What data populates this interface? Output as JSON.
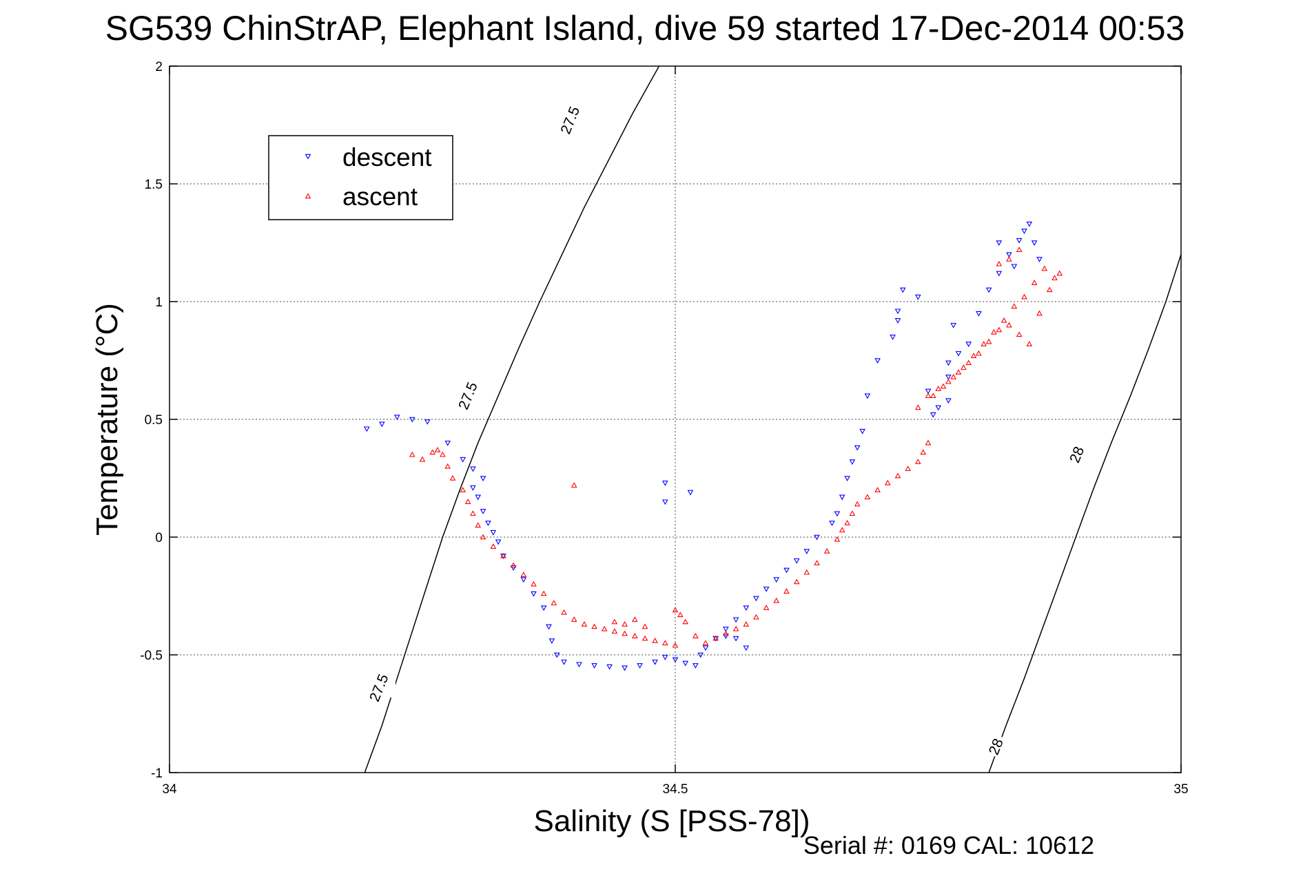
{
  "chart_data": {
    "type": "scatter",
    "title": "SG539 ChinStrAP, Elephant Island, dive 59 started 17-Dec-2014 00:53",
    "xlabel": "Salinity (S [PSS-78])",
    "ylabel": "Temperature (°C)",
    "footer": "Serial #: 0169 CAL: 10612",
    "xlim": [
      34,
      35
    ],
    "ylim": [
      -1,
      2
    ],
    "x_ticks": [
      "34",
      "34.5",
      "35"
    ],
    "y_ticks": [
      "-1",
      "-0.5",
      "0",
      "0.5",
      "1",
      "1.5",
      "2"
    ],
    "x_tick_values": [
      34,
      34.5,
      35
    ],
    "y_tick_values": [
      -1,
      -0.5,
      0,
      0.5,
      1,
      1.5,
      2
    ],
    "grid": true,
    "legend": {
      "position": "top-left"
    },
    "series": [
      {
        "name": "descent",
        "color": "#0000ff",
        "marker": "triangle-down",
        "points": [
          [
            34.195,
            0.46
          ],
          [
            34.21,
            0.48
          ],
          [
            34.225,
            0.51
          ],
          [
            34.24,
            0.5
          ],
          [
            34.255,
            0.49
          ],
          [
            34.275,
            0.4
          ],
          [
            34.29,
            0.33
          ],
          [
            34.3,
            0.29
          ],
          [
            34.31,
            0.25
          ],
          [
            34.3,
            0.21
          ],
          [
            34.305,
            0.17
          ],
          [
            34.31,
            0.11
          ],
          [
            34.315,
            0.06
          ],
          [
            34.32,
            0.02
          ],
          [
            34.325,
            -0.02
          ],
          [
            34.33,
            -0.08
          ],
          [
            34.34,
            -0.13
          ],
          [
            34.35,
            -0.18
          ],
          [
            34.36,
            -0.24
          ],
          [
            34.37,
            -0.3
          ],
          [
            34.375,
            -0.38
          ],
          [
            34.378,
            -0.44
          ],
          [
            34.383,
            -0.5
          ],
          [
            34.39,
            -0.53
          ],
          [
            34.405,
            -0.54
          ],
          [
            34.42,
            -0.545
          ],
          [
            34.435,
            -0.55
          ],
          [
            34.45,
            -0.555
          ],
          [
            34.465,
            -0.545
          ],
          [
            34.48,
            -0.53
          ],
          [
            34.49,
            -0.51
          ],
          [
            34.5,
            -0.52
          ],
          [
            34.51,
            -0.535
          ],
          [
            34.52,
            -0.545
          ],
          [
            34.525,
            -0.5
          ],
          [
            34.53,
            -0.47
          ],
          [
            34.54,
            -0.43
          ],
          [
            34.55,
            -0.42
          ],
          [
            34.56,
            -0.43
          ],
          [
            34.57,
            -0.47
          ],
          [
            34.55,
            -0.39
          ],
          [
            34.56,
            -0.35
          ],
          [
            34.57,
            -0.3
          ],
          [
            34.58,
            -0.26
          ],
          [
            34.59,
            -0.22
          ],
          [
            34.6,
            -0.18
          ],
          [
            34.61,
            -0.14
          ],
          [
            34.62,
            -0.1
          ],
          [
            34.63,
            -0.06
          ],
          [
            34.64,
            0.0
          ],
          [
            34.655,
            0.06
          ],
          [
            34.66,
            0.1
          ],
          [
            34.665,
            0.17
          ],
          [
            34.67,
            0.25
          ],
          [
            34.675,
            0.32
          ],
          [
            34.68,
            0.38
          ],
          [
            34.685,
            0.45
          ],
          [
            34.69,
            0.6
          ],
          [
            34.7,
            0.75
          ],
          [
            34.715,
            0.85
          ],
          [
            34.72,
            0.96
          ],
          [
            34.725,
            1.05
          ],
          [
            34.74,
            1.02
          ],
          [
            34.72,
            0.92
          ],
          [
            34.75,
            0.62
          ],
          [
            34.76,
            0.55
          ],
          [
            34.755,
            0.52
          ],
          [
            34.77,
            0.68
          ],
          [
            34.77,
            0.74
          ],
          [
            34.77,
            0.58
          ],
          [
            34.78,
            0.78
          ],
          [
            34.775,
            0.9
          ],
          [
            34.79,
            0.82
          ],
          [
            34.8,
            0.95
          ],
          [
            34.81,
            1.05
          ],
          [
            34.82,
            1.12
          ],
          [
            34.83,
            1.2
          ],
          [
            34.84,
            1.26
          ],
          [
            34.845,
            1.3
          ],
          [
            34.85,
            1.33
          ],
          [
            34.855,
            1.25
          ],
          [
            34.86,
            1.18
          ],
          [
            34.835,
            1.15
          ],
          [
            34.82,
            1.25
          ],
          [
            34.49,
            0.23
          ],
          [
            34.49,
            0.15
          ],
          [
            34.515,
            0.19
          ]
        ]
      },
      {
        "name": "ascent",
        "color": "#ff0000",
        "marker": "triangle-up",
        "points": [
          [
            34.24,
            0.35
          ],
          [
            34.25,
            0.33
          ],
          [
            34.26,
            0.36
          ],
          [
            34.265,
            0.37
          ],
          [
            34.27,
            0.35
          ],
          [
            34.275,
            0.3
          ],
          [
            34.28,
            0.25
          ],
          [
            34.29,
            0.2
          ],
          [
            34.295,
            0.15
          ],
          [
            34.3,
            0.1
          ],
          [
            34.305,
            0.05
          ],
          [
            34.31,
            0.0
          ],
          [
            34.32,
            -0.04
          ],
          [
            34.33,
            -0.08
          ],
          [
            34.34,
            -0.12
          ],
          [
            34.35,
            -0.16
          ],
          [
            34.36,
            -0.2
          ],
          [
            34.37,
            -0.24
          ],
          [
            34.38,
            -0.28
          ],
          [
            34.39,
            -0.32
          ],
          [
            34.4,
            -0.35
          ],
          [
            34.41,
            -0.37
          ],
          [
            34.42,
            -0.38
          ],
          [
            34.43,
            -0.39
          ],
          [
            34.44,
            -0.4
          ],
          [
            34.45,
            -0.41
          ],
          [
            34.46,
            -0.42
          ],
          [
            34.47,
            -0.43
          ],
          [
            34.48,
            -0.44
          ],
          [
            34.49,
            -0.45
          ],
          [
            34.5,
            -0.46
          ],
          [
            34.44,
            -0.36
          ],
          [
            34.45,
            -0.37
          ],
          [
            34.46,
            -0.35
          ],
          [
            34.47,
            -0.38
          ],
          [
            34.5,
            -0.31
          ],
          [
            34.505,
            -0.33
          ],
          [
            34.51,
            -0.36
          ],
          [
            34.52,
            -0.42
          ],
          [
            34.53,
            -0.45
          ],
          [
            34.54,
            -0.43
          ],
          [
            34.55,
            -0.41
          ],
          [
            34.56,
            -0.39
          ],
          [
            34.57,
            -0.37
          ],
          [
            34.58,
            -0.34
          ],
          [
            34.59,
            -0.3
          ],
          [
            34.6,
            -0.27
          ],
          [
            34.61,
            -0.23
          ],
          [
            34.62,
            -0.19
          ],
          [
            34.63,
            -0.15
          ],
          [
            34.64,
            -0.11
          ],
          [
            34.65,
            -0.06
          ],
          [
            34.66,
            -0.01
          ],
          [
            34.665,
            0.03
          ],
          [
            34.67,
            0.06
          ],
          [
            34.675,
            0.1
          ],
          [
            34.68,
            0.14
          ],
          [
            34.69,
            0.17
          ],
          [
            34.7,
            0.2
          ],
          [
            34.71,
            0.23
          ],
          [
            34.72,
            0.26
          ],
          [
            34.73,
            0.29
          ],
          [
            34.74,
            0.32
          ],
          [
            34.745,
            0.36
          ],
          [
            34.75,
            0.4
          ],
          [
            34.74,
            0.55
          ],
          [
            34.75,
            0.6
          ],
          [
            34.76,
            0.63
          ],
          [
            34.77,
            0.66
          ],
          [
            34.78,
            0.7
          ],
          [
            34.79,
            0.74
          ],
          [
            34.8,
            0.78
          ],
          [
            34.81,
            0.83
          ],
          [
            34.82,
            0.88
          ],
          [
            34.83,
            0.9
          ],
          [
            34.84,
            0.86
          ],
          [
            34.85,
            0.82
          ],
          [
            34.86,
            0.95
          ],
          [
            34.87,
            1.05
          ],
          [
            34.875,
            1.1
          ],
          [
            34.88,
            1.12
          ],
          [
            34.865,
            1.14
          ],
          [
            34.855,
            1.08
          ],
          [
            34.845,
            1.02
          ],
          [
            34.835,
            0.98
          ],
          [
            34.825,
            0.92
          ],
          [
            34.815,
            0.87
          ],
          [
            34.805,
            0.82
          ],
          [
            34.795,
            0.77
          ],
          [
            34.785,
            0.72
          ],
          [
            34.775,
            0.68
          ],
          [
            34.765,
            0.64
          ],
          [
            34.755,
            0.6
          ],
          [
            34.82,
            1.16
          ],
          [
            34.83,
            1.18
          ],
          [
            34.84,
            1.22
          ],
          [
            34.4,
            0.22
          ]
        ]
      }
    ],
    "isopycnals": [
      {
        "label": "27.5",
        "points": [
          [
            34.193,
            -1.0
          ],
          [
            34.21,
            -0.8
          ],
          [
            34.225,
            -0.6
          ],
          [
            34.24,
            -0.4
          ],
          [
            34.255,
            -0.2
          ],
          [
            34.27,
            0.0
          ],
          [
            34.287,
            0.2
          ],
          [
            34.305,
            0.4
          ],
          [
            34.325,
            0.6
          ],
          [
            34.345,
            0.8
          ],
          [
            34.366,
            1.0
          ],
          [
            34.388,
            1.2
          ],
          [
            34.41,
            1.4
          ],
          [
            34.434,
            1.6
          ],
          [
            34.458,
            1.8
          ],
          [
            34.484,
            2.0
          ]
        ],
        "label_positions": [
          [
            34.207,
            -0.64
          ],
          [
            34.295,
            0.6
          ],
          [
            34.396,
            1.77
          ]
        ]
      },
      {
        "label": "28",
        "points": [
          [
            34.81,
            -1.0
          ],
          [
            34.827,
            -0.8
          ],
          [
            34.845,
            -0.6
          ],
          [
            34.862,
            -0.4
          ],
          [
            34.879,
            -0.2
          ],
          [
            34.896,
            0.0
          ],
          [
            34.913,
            0.2
          ],
          [
            34.931,
            0.4
          ],
          [
            34.95,
            0.6
          ],
          [
            34.968,
            0.8
          ],
          [
            34.985,
            1.0
          ],
          [
            35.0,
            1.2
          ]
        ],
        "label_positions": [
          [
            34.817,
            -0.89
          ],
          [
            34.897,
            0.35
          ]
        ]
      }
    ]
  }
}
